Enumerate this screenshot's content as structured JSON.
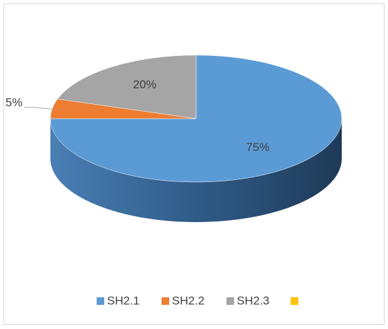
{
  "chart_data": {
    "type": "pie3d",
    "categories": [
      "SH2.1",
      "SH2.2",
      "SH2.3",
      null
    ],
    "values": [
      75,
      5,
      20,
      null
    ],
    "value_labels": [
      "75%",
      "5%",
      "20%",
      null
    ],
    "colors": [
      "#5b9bd5",
      "#ed7d31",
      "#a5a5a5",
      "#ffc000"
    ],
    "legend": "bottom"
  }
}
